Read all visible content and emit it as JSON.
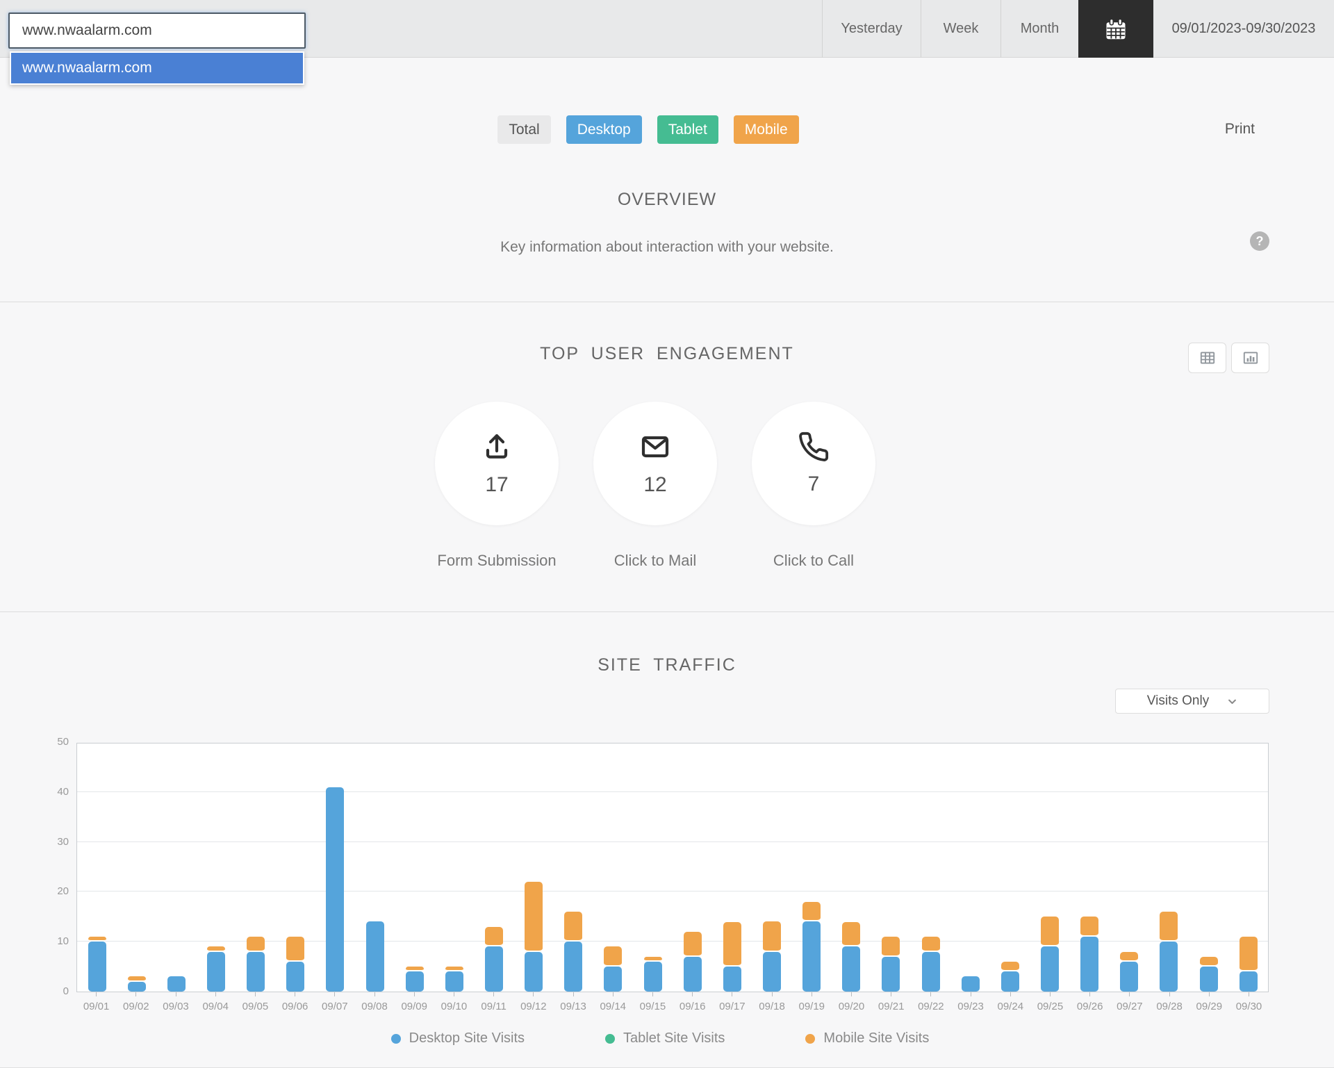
{
  "header": {
    "site_input": {
      "value": "www.nwaalarm.com",
      "placeholder": ""
    },
    "dropdown_options": [
      "www.nwaalarm.com"
    ],
    "range_buttons": [
      "Yesterday",
      "Week",
      "Month"
    ],
    "calendar_icon": "calendar-icon",
    "date_range": "09/01/2023-09/30/2023"
  },
  "filters": {
    "options": [
      {
        "label": "Total",
        "color": "#e9e9ea",
        "text_color": "#555555"
      },
      {
        "label": "Desktop",
        "color": "#55a4db",
        "text_color": "#ffffff"
      },
      {
        "label": "Tablet",
        "color": "#45bc92",
        "text_color": "#ffffff"
      },
      {
        "label": "Mobile",
        "color": "#f0a44a",
        "text_color": "#ffffff"
      }
    ],
    "print_label": "Print"
  },
  "overview": {
    "title": "OVERVIEW",
    "subtitle": "Key information about interaction with your website.",
    "help_icon": "?"
  },
  "engagement": {
    "title": "TOP USER ENGAGEMENT",
    "view_toggles": [
      "table-view-icon",
      "chart-view-icon"
    ],
    "metrics": [
      {
        "icon": "upload-icon",
        "value": "17",
        "label": "Form Submission"
      },
      {
        "icon": "mail-icon",
        "value": "12",
        "label": "Click to Mail"
      },
      {
        "icon": "phone-icon",
        "value": "7",
        "label": "Click to Call"
      }
    ]
  },
  "site_traffic": {
    "title": "SITE TRAFFIC",
    "dropdown_value": "Visits Only"
  },
  "chart_data": {
    "type": "bar",
    "stacked": true,
    "title": "SITE TRAFFIC",
    "xlabel": "",
    "ylabel": "",
    "ylim": [
      0,
      50
    ],
    "yticks": [
      0,
      10,
      20,
      30,
      40,
      50
    ],
    "grid": true,
    "legend_position": "bottom",
    "categories": [
      "09/01",
      "09/02",
      "09/03",
      "09/04",
      "09/05",
      "09/06",
      "09/07",
      "09/08",
      "09/09",
      "09/10",
      "09/11",
      "09/12",
      "09/13",
      "09/14",
      "09/15",
      "09/16",
      "09/17",
      "09/18",
      "09/19",
      "09/20",
      "09/21",
      "09/22",
      "09/23",
      "09/24",
      "09/25",
      "09/26",
      "09/27",
      "09/28",
      "09/29",
      "09/30"
    ],
    "series": [
      {
        "name": "Desktop Site Visits",
        "color": "#55a4db",
        "values": [
          10,
          2,
          3,
          8,
          8,
          6,
          41,
          14,
          4,
          4,
          9,
          8,
          10,
          5,
          6,
          7,
          5,
          8,
          14,
          9,
          7,
          8,
          3,
          4,
          9,
          11,
          6,
          10,
          5,
          4
        ]
      },
      {
        "name": "Tablet Site Visits",
        "color": "#45bc92",
        "values": [
          0,
          0,
          0,
          0,
          0,
          0,
          0,
          0,
          0,
          0,
          0,
          0,
          0,
          0,
          0,
          0,
          0,
          0,
          0,
          0,
          0,
          0,
          0,
          0,
          0,
          0,
          0,
          0,
          0,
          0
        ]
      },
      {
        "name": "Mobile Site Visits",
        "color": "#f0a44a",
        "values": [
          1,
          1,
          0,
          1,
          3,
          5,
          0,
          0,
          1,
          1,
          4,
          14,
          6,
          4,
          1,
          5,
          9,
          6,
          4,
          5,
          4,
          3,
          0,
          2,
          6,
          4,
          2,
          6,
          2,
          7
        ]
      }
    ]
  }
}
